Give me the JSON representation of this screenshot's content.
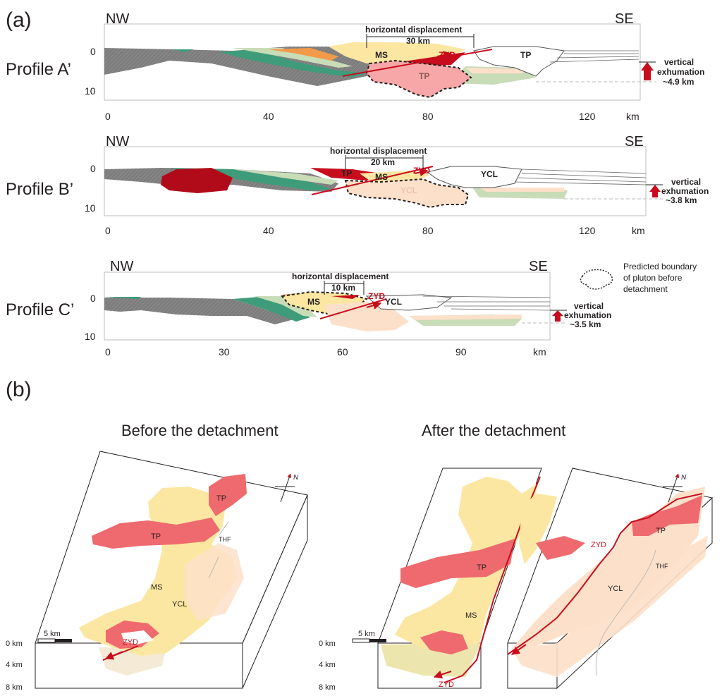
{
  "panel_a": {
    "label": "(a)",
    "profiles": [
      {
        "name": "Profile A’",
        "left_dir": "NW",
        "right_dir": "SE",
        "depth_ticks": [
          "0",
          "10"
        ],
        "x_ticks": [
          "0",
          "40",
          "80",
          "120"
        ],
        "x_unit": "km",
        "horizontal_label": "horizontal displacement",
        "horizontal_value": "30 km",
        "vertical_label": "vertical",
        "vertical_label2": "exhumation",
        "vertical_value": "~4.9 km",
        "units": {
          "ms": "MS",
          "zyd": "ZYD",
          "tp_upper": "TP",
          "tp_lower": "TP"
        }
      },
      {
        "name": "Profile B’",
        "left_dir": "NW",
        "right_dir": "SE",
        "depth_ticks": [
          "0",
          "10"
        ],
        "x_ticks": [
          "0",
          "40",
          "80",
          "120"
        ],
        "x_unit": "km",
        "horizontal_label": "horizontal displacement",
        "horizontal_value": "20 km",
        "vertical_label": "vertical",
        "vertical_label2": "exhumation",
        "vertical_value": "~3.8 km",
        "units": {
          "tp": "TP",
          "ms": "MS",
          "zyd": "ZYD",
          "ycl_upper": "YCL",
          "ycl_lower": "YCL"
        }
      },
      {
        "name": "Profile C’",
        "left_dir": "NW",
        "right_dir": "SE",
        "depth_ticks": [
          "0",
          "10"
        ],
        "x_ticks": [
          "0",
          "30",
          "60",
          "90"
        ],
        "x_unit": "km",
        "horizontal_label": "horizontal displacement",
        "horizontal_value": "10 km",
        "vertical_label": "vertical",
        "vertical_label2": "exhumation",
        "vertical_value": "~3.5 km",
        "units": {
          "ms": "MS",
          "zyd": "ZYD",
          "ycl": "YCL"
        }
      }
    ],
    "legend": {
      "line1": "Predicted boundary",
      "line2": "of pluton before",
      "line3": "detachment"
    }
  },
  "panel_b": {
    "label": "(b)",
    "before_title": "Before the detachment",
    "after_title": "After the detachment",
    "before": {
      "tp1": "TP",
      "tp2": "TP",
      "thf": "THF",
      "ms": "MS",
      "ycl": "YCL",
      "zyd": "ZYD",
      "scale": "5 km",
      "d0": "0 km",
      "d4": "4 km",
      "d8": "8 km",
      "north": "N"
    },
    "after_left": {
      "tp": "TP",
      "ms": "MS",
      "zyd": "ZYD",
      "scale": "5 km",
      "d0": "0 km",
      "d4": "4 km",
      "d8": "8 km"
    },
    "after_right": {
      "tp": "TP",
      "zyd": "ZYD",
      "ycl": "YCL",
      "thf": "THF",
      "north": "N"
    }
  },
  "colors": {
    "gray": "#7d7d7d",
    "green": "#3e9c7b",
    "pale_green": "#c9dcb8",
    "orange": "#f39a4a",
    "yellow": "#fbe7a1",
    "red": "#c70d1d",
    "pink": "#f7a7a7",
    "tp_red": "#ee6a6e",
    "peach": "#fde0c9",
    "cream": "#fbf0c8"
  }
}
